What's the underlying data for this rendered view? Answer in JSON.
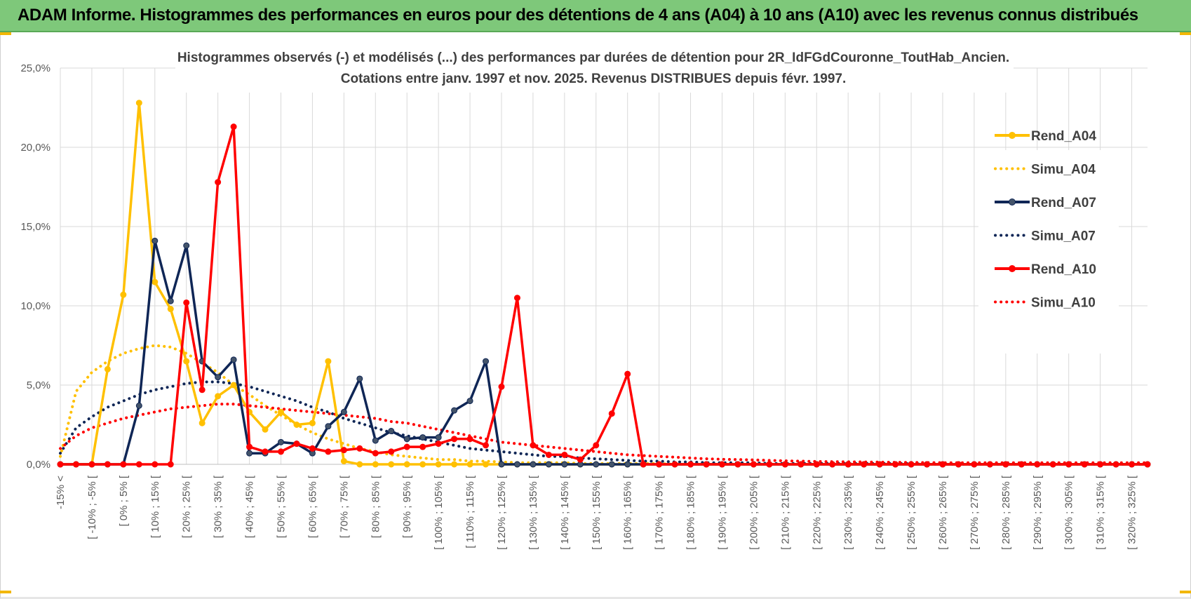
{
  "header": {
    "title": "ADAM Informe. Histogrammes des performances en euros pour des détentions de 4 ans (A04) à 10 ans (A10) avec les revenus connus distribués"
  },
  "colors": {
    "banner": "#7ec87a",
    "A04": "#ffc000",
    "A07": "#0f2656",
    "A10": "#ff0000",
    "grid": "#d9d9d9"
  },
  "chart_data": {
    "type": "line",
    "title": "Histogrammes observés (-) et modélisés (...) des performances par durées de détention pour 2R_IdFGdCouronne_ToutHab_Ancien.",
    "subtitle": "Cotations entre janv. 1997 et nov. 2025. Revenus DISTRIBUES depuis févr. 1997.",
    "xlabel": "",
    "ylabel": "",
    "ylim": [
      0,
      25
    ],
    "yticks": [
      "0,0%",
      "5,0%",
      "10,0%",
      "15,0%",
      "20,0%",
      "25,0%"
    ],
    "legend_position": "top-right",
    "grid": true,
    "categories": [
      "-15% <",
      "[ -15% ; -10% [",
      "[ -10% ; -5% [",
      "[ -5% ; 0% [",
      "[ 0% ; 5% [",
      "[ 5% ; 10% [",
      "[ 10% ; 15% [",
      "[ 15% ; 20% [",
      "[ 20% ; 25% [",
      "[ 25% ; 30% [",
      "[ 30% ; 35% [",
      "[ 35% ; 40% [",
      "[ 40% ; 45% [",
      "[ 45% ; 50% [",
      "[ 50% ; 55% [",
      "[ 55% ; 60% [",
      "[ 60% ; 65% [",
      "[ 65% ; 70% [",
      "[ 70% ; 75% [",
      "[ 75% ; 80% [",
      "[ 80% ; 85% [",
      "[ 85% ; 90% [",
      "[ 90% ; 95% [",
      "[ 95% ; 100% [",
      "[ 100% ; 105% [",
      "[ 105% ; 110% [",
      "[ 110% ; 115% [",
      "[ 115% ; 120% [",
      "[ 120% ; 125% [",
      "[ 125% ; 130% [",
      "[ 130% ; 135% [",
      "[ 135% ; 140% [",
      "[ 140% ; 145% [",
      "[ 145% ; 150% [",
      "[ 150% ; 155% [",
      "[ 155% ; 160% [",
      "[ 160% ; 165% [",
      "[ 165% ; 170% [",
      "[ 170% ; 175% [",
      "[ 175% ; 180% [",
      "[ 180% ; 185% [",
      "[ 185% ; 190% [",
      "[ 190% ; 195% [",
      "[ 195% ; 200% [",
      "[ 200% ; 205% [",
      "[ 205% ; 210% [",
      "[ 210% ; 215% [",
      "[ 215% ; 220% [",
      "[ 220% ; 225% [",
      "[ 225% ; 230% [",
      "[ 230% ; 235% [",
      "[ 235% ; 240% [",
      "[ 240% ; 245% [",
      "[ 245% ; 250% [",
      "[ 250% ; 255% [",
      "[ 255% ; 260% [",
      "[ 260% ; 265% [",
      "[ 265% ; 270% [",
      "[ 270% ; 275% [",
      "[ 275% ; 280% [",
      "[ 280% ; 285% [",
      "[ 285% ; 290% [",
      "[ 290% ; 295% [",
      "[ 295% ; 300% [",
      "[ 300% ; 305% [",
      "[ 305% ; 310% [",
      "[ 310% ; 315% [",
      "[ 315% ; 320% [",
      "[ 320% ; 325% [",
      "[ 325% ; 330% ["
    ],
    "visible_tick_labels": [
      "-15% <",
      "[ -10% ; -5% [",
      "[ 0% ; 5% [",
      "[ 10% ; 15% [",
      "[ 20% ; 25% [",
      "[ 30% ; 35% [",
      "[ 40% ; 45% [",
      "[ 50% ; 55% [",
      "[ 60% ; 65% [",
      "[ 70% ; 75% [",
      "[ 80% ; 85% [",
      "[ 90% ; 95% [",
      "[ 100% ; 105% [",
      "[ 110% ; 115% [",
      "[ 120% ; 125% [",
      "[ 130% ; 135% [",
      "[ 140% ; 145% [",
      "[ 150% ; 155% [",
      "[ 160% ; 165% [",
      "[ 170% ; 175% [",
      "[ 180% ; 185% [",
      "[ 190% ; 195% [",
      "[ 200% ; 205% [",
      "[ 210% ; 215% [",
      "[ 220% ; 225% [",
      "[ 230% ; 235% [",
      "[ 240% ; 245% [",
      "[ 250% ; 255% [",
      "[ 260% ; 265% [",
      "[ 270% ; 275% [",
      "[ 280% ; 285% [",
      "[ 290% ; 295% [",
      "[ 300% ; 305% [",
      "[ 310% ; 315% [",
      "[ 320% ; 325% ["
    ],
    "series": [
      {
        "name": "Rend_A04",
        "style": "solid",
        "color": "#ffc000",
        "values": [
          0,
          0,
          0,
          6,
          10.7,
          22.8,
          11.5,
          9.8,
          6.5,
          2.6,
          4.3,
          5.0,
          3.3,
          2.2,
          3.3,
          2.5,
          2.6,
          6.5,
          0.2,
          0,
          0,
          0,
          0,
          0,
          0,
          0,
          0,
          0,
          0,
          0,
          0,
          0,
          0,
          0,
          0,
          0,
          0,
          0,
          0,
          0,
          0,
          0,
          0,
          0,
          0,
          0,
          0,
          0,
          0,
          0,
          0,
          0,
          0,
          0,
          0,
          0,
          0,
          0,
          0,
          0,
          0,
          0,
          0,
          0,
          0,
          0,
          0,
          0,
          0,
          0
        ]
      },
      {
        "name": "Simu_A04",
        "style": "dotted",
        "color": "#ffc000",
        "values": [
          0.5,
          4.6,
          5.8,
          6.5,
          7.0,
          7.3,
          7.5,
          7.4,
          7.0,
          6.4,
          5.8,
          5.0,
          4.4,
          3.7,
          3.1,
          2.5,
          2.0,
          1.6,
          1.3,
          1.0,
          0.8,
          0.6,
          0.5,
          0.4,
          0.3,
          0.3,
          0.2,
          0.2,
          0.15,
          0.1,
          0.1,
          0.1,
          0.1,
          0.05,
          0.05,
          0.05,
          0.05,
          0.05,
          0.05,
          0,
          0,
          0,
          0,
          0,
          0,
          0,
          0,
          0,
          0,
          0,
          0,
          0,
          0,
          0,
          0,
          0,
          0,
          0,
          0,
          0,
          0,
          0,
          0,
          0,
          0,
          0,
          0,
          0,
          0,
          0
        ]
      },
      {
        "name": "Rend_A07",
        "style": "solid",
        "color": "#0f2656",
        "values": [
          0,
          0,
          0,
          0,
          0,
          3.7,
          14.1,
          10.3,
          13.8,
          6.5,
          5.5,
          6.6,
          0.7,
          0.7,
          1.4,
          1.3,
          0.7,
          2.4,
          3.3,
          5.4,
          1.5,
          2.1,
          1.6,
          1.7,
          1.7,
          3.4,
          4.0,
          6.5,
          0,
          0,
          0,
          0,
          0,
          0,
          0,
          0,
          0,
          0,
          0,
          0,
          0,
          0,
          0,
          0,
          0,
          0,
          0,
          0,
          0,
          0,
          0,
          0,
          0,
          0,
          0,
          0,
          0,
          0,
          0,
          0,
          0,
          0,
          0,
          0,
          0,
          0,
          0,
          0,
          0,
          0
        ]
      },
      {
        "name": "Simu_A07",
        "style": "dotted",
        "color": "#0f2656",
        "values": [
          0.7,
          2.3,
          3.0,
          3.6,
          4.0,
          4.4,
          4.7,
          4.9,
          5.1,
          5.2,
          5.2,
          5.1,
          4.9,
          4.6,
          4.3,
          4.0,
          3.6,
          3.3,
          2.9,
          2.6,
          2.3,
          2.0,
          1.8,
          1.6,
          1.4,
          1.2,
          1.0,
          0.9,
          0.8,
          0.7,
          0.6,
          0.5,
          0.5,
          0.4,
          0.35,
          0.3,
          0.25,
          0.2,
          0.2,
          0.15,
          0.15,
          0.1,
          0.1,
          0.1,
          0.1,
          0.05,
          0.05,
          0.05,
          0.05,
          0.05,
          0.05,
          0.05,
          0.05,
          0.05,
          0.05,
          0,
          0,
          0,
          0,
          0,
          0,
          0,
          0,
          0,
          0,
          0,
          0,
          0,
          0,
          0
        ]
      },
      {
        "name": "Rend_A10",
        "style": "solid",
        "color": "#ff0000",
        "values": [
          0,
          0,
          0,
          0,
          0,
          0,
          0,
          0,
          10.2,
          4.7,
          17.8,
          21.3,
          1.1,
          0.8,
          0.8,
          1.3,
          1.0,
          0.8,
          0.9,
          1.0,
          0.7,
          0.8,
          1.1,
          1.1,
          1.3,
          1.6,
          1.6,
          1.2,
          4.9,
          10.5,
          1.2,
          0.6,
          0.6,
          0.3,
          1.2,
          3.2,
          5.7,
          0,
          0,
          0,
          0,
          0,
          0,
          0,
          0,
          0,
          0,
          0,
          0,
          0,
          0,
          0,
          0,
          0,
          0,
          0,
          0,
          0,
          0,
          0,
          0,
          0,
          0,
          0,
          0,
          0,
          0,
          0,
          0,
          0
        ]
      },
      {
        "name": "Simu_A10",
        "style": "dotted",
        "color": "#ff0000",
        "values": [
          1.0,
          1.8,
          2.3,
          2.6,
          2.9,
          3.1,
          3.3,
          3.5,
          3.6,
          3.7,
          3.8,
          3.8,
          3.7,
          3.6,
          3.5,
          3.4,
          3.3,
          3.2,
          3.1,
          3.0,
          2.9,
          2.7,
          2.6,
          2.4,
          2.2,
          2.0,
          1.8,
          1.6,
          1.4,
          1.3,
          1.2,
          1.1,
          1.0,
          0.9,
          0.8,
          0.7,
          0.6,
          0.55,
          0.5,
          0.45,
          0.4,
          0.35,
          0.32,
          0.3,
          0.28,
          0.25,
          0.22,
          0.2,
          0.18,
          0.17,
          0.16,
          0.15,
          0.14,
          0.13,
          0.12,
          0.11,
          0.1,
          0.1,
          0.1,
          0.1,
          0.1,
          0.1,
          0.1,
          0.1,
          0.1,
          0.1,
          0.1,
          0.1,
          0.1,
          0.1
        ]
      }
    ]
  }
}
